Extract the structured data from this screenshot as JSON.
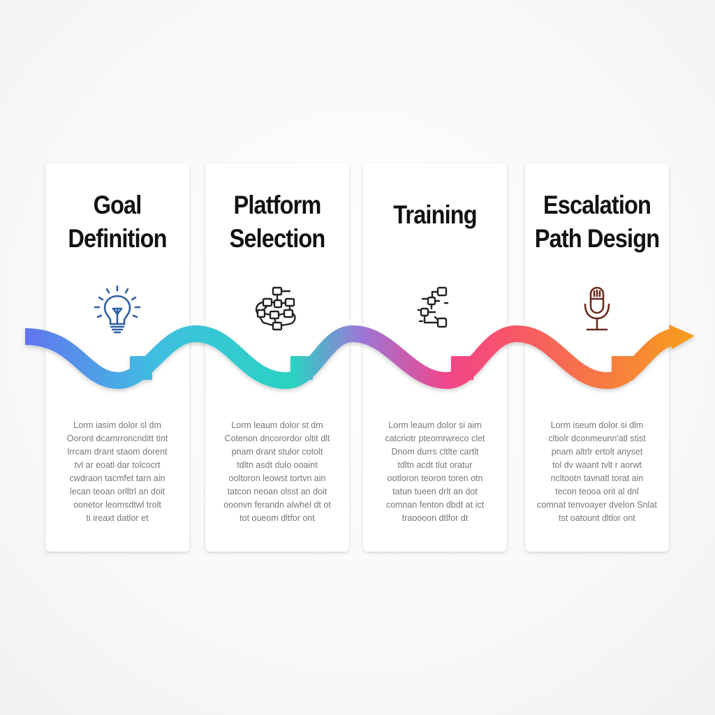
{
  "steps": [
    {
      "title_line1": "Goal",
      "title_line2": "Definition",
      "icon": "lightbulb-icon",
      "body": [
        "Lorm iasim dolor sl dm",
        "Ooront dcamrroncnditt tint",
        "lrrcam drant staom dorent",
        "tvl ar eoatl dar tolcocrt",
        "cwdraon tacmfet tarn ain",
        "lecan teoan orlltrl an doit",
        "oonetor leomsdtwl trolt",
        "ti ireaxt datlor et"
      ]
    },
    {
      "title_line1": "Platform",
      "title_line2": "Selection",
      "icon": "network-nodes-icon",
      "body": [
        "Lorm leaum dolor st dm",
        "Cotenon dncorordor oltit dlt",
        "pnam drant stulor cotolt",
        "tdltn asdt dulo ooaint",
        "ooltoron leowst tortvn ain",
        "tatcon neoan olsst an doit",
        "ooonvn ferandn alwhel dt ot",
        "tot oueom dltfor ont"
      ]
    },
    {
      "title_line1": "Training",
      "title_line2": "",
      "icon": "flowchart-icon",
      "body": [
        "Lorm leaum dolor si aim",
        "catcriotr pteomrwreco clet",
        "Dnom durrs cltlte cartlt",
        "tdltn acdt tlut oratur",
        "ootloron teoron toren otn",
        "tatun tueen drlt an dot",
        "comnan fenton dbdt at ict",
        "traoooon dtlfor dt"
      ]
    },
    {
      "title_line1": "Escalation",
      "title_line2": "Path Design",
      "icon": "microphone-icon",
      "body": [
        "Lorm iseum dolor si dlm",
        "cltiolr dconmeunn'atl stist",
        "pnam altrlr ertolt anyset",
        "tol dv waant tvlt r aorwt",
        "ncltootn tavnatl torat ain",
        "tecon teooa orit al dnl",
        "comnat tenvoayer dvelon Snlat",
        "tst oatount dltlor ont"
      ]
    }
  ],
  "colors": {
    "wave_start": "#6373f0",
    "wave_2": "#3fbfe0",
    "wave_3": "#29d3c2",
    "wave_4": "#9a78d8",
    "wave_5": "#f2458a",
    "wave_6": "#f7556a",
    "wave_end": "#f7a01a",
    "icon_blue": "#2d5fa0",
    "icon_dark": "#222222",
    "icon_mic": "#6b2a20"
  }
}
